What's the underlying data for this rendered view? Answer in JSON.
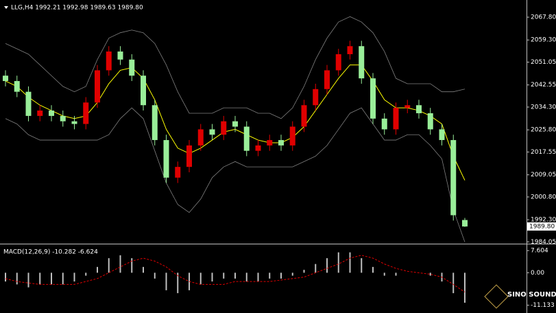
{
  "chart_data": [
    {
      "type": "candlestick",
      "title": "LLG,H4  1992.21 1992.98 1989.63 1989.80",
      "up_color": "#e00000",
      "down_color": "#99ee99",
      "open": [
        2046,
        2044,
        2040,
        2031,
        2033,
        2031,
        2029,
        2028,
        2036,
        2048,
        2055,
        2052,
        2046,
        2035,
        2022,
        2008,
        2012,
        2020,
        2026,
        2024,
        2029,
        2027,
        2018,
        2020,
        2022,
        2020,
        2027,
        2035,
        2041,
        2048,
        2054,
        2057,
        2045,
        2030,
        2026,
        2034,
        2035,
        2032,
        2026,
        2022,
        1992.21
      ],
      "high": [
        2048,
        2046,
        2042,
        2035,
        2035,
        2033,
        2031,
        2038,
        2050,
        2057,
        2057,
        2054,
        2048,
        2037,
        2024,
        2014,
        2022,
        2028,
        2028,
        2031,
        2031,
        2029,
        2022,
        2024,
        2024,
        2029,
        2037,
        2043,
        2050,
        2056,
        2059,
        2059,
        2047,
        2032,
        2036,
        2037,
        2037,
        2034,
        2028,
        2024,
        1992.98
      ],
      "low": [
        2042,
        2038,
        2029,
        2029,
        2029,
        2027,
        2026,
        2026,
        2034,
        2046,
        2050,
        2044,
        2033,
        2020,
        2006,
        2006,
        2010,
        2018,
        2022,
        2022,
        2025,
        2016,
        2016,
        2018,
        2018,
        2018,
        2025,
        2033,
        2039,
        2046,
        2052,
        2043,
        2028,
        2024,
        2024,
        2032,
        2030,
        2024,
        2020,
        1992,
        1989.63
      ],
      "close": [
        2044,
        2040,
        2031,
        2033,
        2031,
        2029,
        2028,
        2036,
        2048,
        2055,
        2052,
        2046,
        2035,
        2022,
        2008,
        2012,
        2020,
        2026,
        2024,
        2029,
        2027,
        2018,
        2020,
        2022,
        2020,
        2027,
        2035,
        2041,
        2048,
        2054,
        2057,
        2045,
        2030,
        2026,
        2034,
        2035,
        2032,
        2026,
        2022,
        1994,
        1989.8
      ],
      "overlays": [
        {
          "color": "#ffff00",
          "values": [
            2044,
            2042,
            2038,
            2035,
            2033,
            2031,
            2030,
            2031,
            2036,
            2043,
            2048,
            2049,
            2045,
            2037,
            2026,
            2019,
            2017,
            2019,
            2022,
            2025,
            2026,
            2024,
            2022,
            2021,
            2021,
            2023,
            2027,
            2033,
            2039,
            2045,
            2050,
            2050,
            2044,
            2037,
            2034,
            2034,
            2033,
            2031,
            2028,
            2016,
            2007
          ]
        },
        {
          "color": "#808080",
          "values": [
            2058,
            2056,
            2054,
            2050,
            2046,
            2042,
            2040,
            2042,
            2052,
            2060,
            2062,
            2063,
            2062,
            2058,
            2050,
            2040,
            2032,
            2032,
            2032,
            2034,
            2034,
            2034,
            2032,
            2032,
            2030,
            2034,
            2042,
            2052,
            2060,
            2066,
            2068,
            2066,
            2062,
            2055,
            2045,
            2043,
            2043,
            2043,
            2040,
            2040,
            2041
          ]
        },
        {
          "color": "#808080",
          "values": [
            2030,
            2028,
            2024,
            2022,
            2022,
            2022,
            2022,
            2022,
            2022,
            2024,
            2030,
            2034,
            2030,
            2018,
            2006,
            1998,
            1995,
            2000,
            2008,
            2012,
            2014,
            2012,
            2012,
            2012,
            2012,
            2012,
            2014,
            2016,
            2020,
            2026,
            2032,
            2034,
            2028,
            2022,
            2022,
            2024,
            2024,
            2020,
            2015,
            1996,
            1984
          ]
        }
      ],
      "ylim": [
        1983.9,
        2074.2
      ],
      "yticks": [
        {
          "value": 2067.8,
          "label": "2067.80"
        },
        {
          "value": 2059.3,
          "label": "2059.30"
        },
        {
          "value": 2051.05,
          "label": "2051.05"
        },
        {
          "value": 2042.55,
          "label": "2042.55"
        },
        {
          "value": 2034.3,
          "label": "2034.30"
        },
        {
          "value": 2025.8,
          "label": "2025.80"
        },
        {
          "value": 2017.55,
          "label": "2017.55"
        },
        {
          "value": 2009.05,
          "label": "2009.05"
        },
        {
          "value": 2000.8,
          "label": "2000.80"
        },
        {
          "value": 1992.3,
          "label": "1992.30"
        },
        {
          "value": 1984.05,
          "label": "1984.05"
        }
      ],
      "current_price": {
        "value": 1989.8,
        "label": "1989.80"
      }
    },
    {
      "type": "macd",
      "title": "MACD(12,26,9) -10.282 -6.624",
      "histogram": [
        -3,
        -4,
        -5,
        -4,
        -4,
        -4,
        -3,
        -1,
        2,
        5,
        6,
        5,
        2,
        -2,
        -6,
        -7,
        -6,
        -4,
        -3,
        -2,
        -2,
        -3,
        -3,
        -2,
        -2,
        -1,
        1,
        3,
        5,
        7,
        7,
        5,
        2,
        -1,
        -1,
        0,
        0,
        -1,
        -3,
        -7,
        -10.282
      ],
      "signal": [
        -2,
        -3,
        -3.5,
        -4,
        -4,
        -4,
        -4,
        -3,
        -2,
        0,
        2,
        4,
        5,
        4,
        2,
        -1,
        -3,
        -4,
        -4,
        -4,
        -3,
        -3,
        -3,
        -3,
        -2.5,
        -2,
        -1.5,
        0,
        1.5,
        3,
        5,
        6,
        5,
        3,
        1.5,
        0.5,
        0,
        -0.5,
        -1.5,
        -4,
        -6.624
      ],
      "hist_color": "#c0c0c0",
      "signal_color": "#e00000",
      "ylim": [
        -13.8,
        9.5
      ],
      "yticks": [
        7.604,
        {
          "value": 0,
          "label": "0.00"
        },
        -11.133
      ]
    },
    {
      "type": "watermark",
      "title": "SINO SOUND"
    }
  ]
}
